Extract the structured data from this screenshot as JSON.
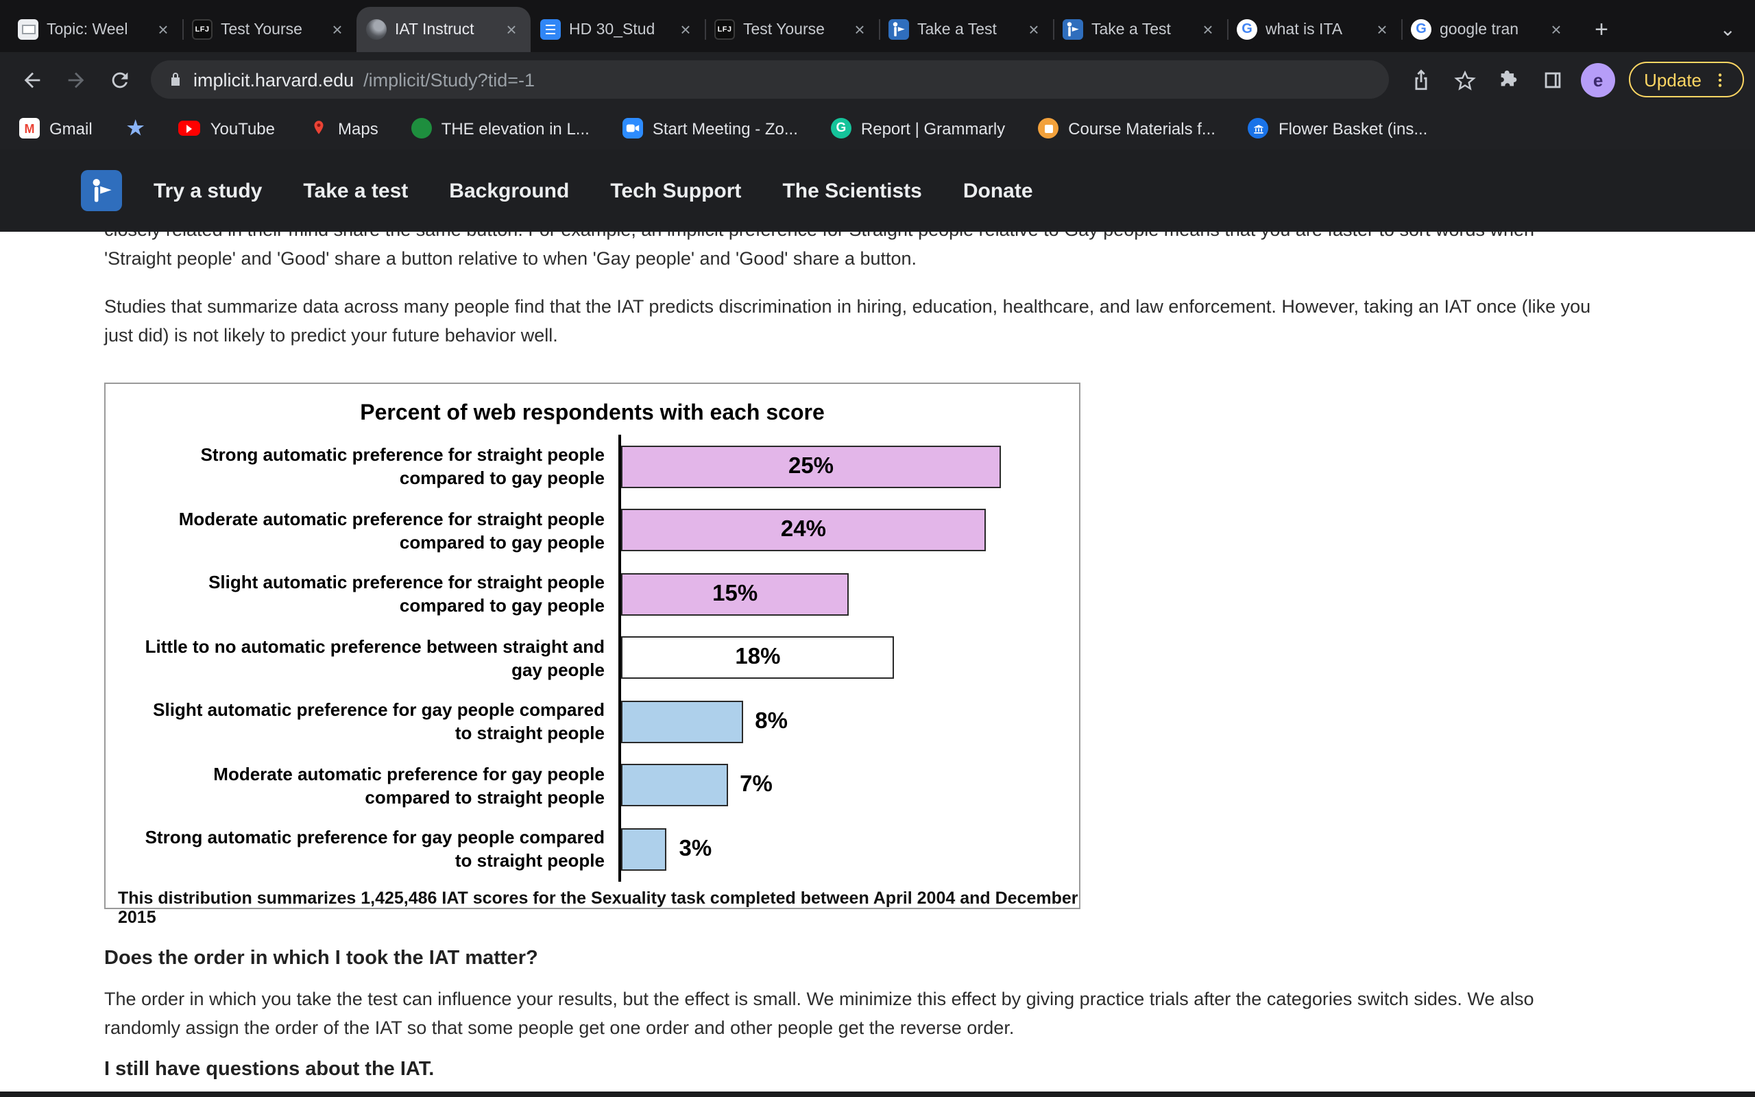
{
  "theme": {
    "update_button_color": "#fdd663",
    "avatar_color": "#b69df8",
    "nav_background": "#1e1f22",
    "brand_blue": "#2f6ebd"
  },
  "icons": {
    "close": "×",
    "plus": "+",
    "chevron_down": "⌄",
    "lfj_text": "LFJ",
    "google_letter": "G",
    "gmail_letter": "M",
    "grammarly_letter": "G",
    "star": "★"
  },
  "browser": {
    "tabs": [
      {
        "title": "Topic: Weel",
        "icon": "slides-icon"
      },
      {
        "title": "Test Yourse",
        "icon": "lfj-icon"
      },
      {
        "title": "IAT Instruct",
        "icon": "implicit-favicon",
        "active": true
      },
      {
        "title": "HD 30_Stud",
        "icon": "docs-icon"
      },
      {
        "title": "Test Yourse",
        "icon": "lfj-icon"
      },
      {
        "title": "Take a Test",
        "icon": "implicit-logo-icon"
      },
      {
        "title": "Take a Test",
        "icon": "implicit-logo-icon"
      },
      {
        "title": "what is ITA",
        "icon": "google-icon"
      },
      {
        "title": "google tran",
        "icon": "google-icon"
      }
    ],
    "toolbar": {
      "url_domain": "implicit.harvard.edu",
      "url_path": "/implicit/Study?tid=-1",
      "update_label": "Update",
      "avatar_letter": "e"
    },
    "bookmarks": [
      {
        "label": "Gmail",
        "icon": "gmail-icon"
      },
      {
        "label": "",
        "icon": "star-icon"
      },
      {
        "label": "YouTube",
        "icon": "youtube-icon"
      },
      {
        "label": "Maps",
        "icon": "maps-icon"
      },
      {
        "label": "THE elevation in L...",
        "icon": "the-icon"
      },
      {
        "label": "Start Meeting - Zo...",
        "icon": "zoom-icon"
      },
      {
        "label": "Report | Grammarly",
        "icon": "grammarly-icon"
      },
      {
        "label": "Course Materials f...",
        "icon": "course-icon"
      },
      {
        "label": "Flower Basket (ins...",
        "icon": "bank-icon"
      }
    ]
  },
  "site_nav": {
    "links": [
      "Try a study",
      "Take a test",
      "Background",
      "Tech Support",
      "The Scientists",
      "Donate"
    ]
  },
  "content": {
    "clipped_line": "closely related in their mind share the same button. For example, an implicit preference for Straight people relative to Gay people means that you are faster to sort words when",
    "line2": "'Straight people' and 'Good' share a button relative to when 'Gay people' and 'Good' share a button.",
    "para1_line1": "Studies that summarize data across many people find that the IAT predicts discrimination in hiring, education, healthcare, and law enforcement. However, taking an IAT once (like you",
    "para1_line2": "just did) is not likely to predict your future behavior well.",
    "heading1": "Does the order in which I took the IAT matter?",
    "para2_line1": "The order in which you take the test can influence your results, but the effect is small. We minimize this effect by giving practice trials after the categories switch sides. We also",
    "para2_line2": "randomly assign the order of the IAT so that some people get one order and other people get the reverse order.",
    "heading2": "I still have questions about the IAT."
  },
  "chart_data": {
    "type": "bar",
    "orientation": "horizontal",
    "title": "Percent of web respondents with each score",
    "categories": [
      "Strong automatic preference for straight people\ncompared to gay people",
      "Moderate automatic preference for straight people\ncompared to gay people",
      "Slight automatic preference for straight people\ncompared to gay people",
      "Little to no automatic preference between straight and\ngay people",
      "Slight automatic preference for gay people compared\nto straight people",
      "Moderate automatic preference for gay people\ncompared to straight people",
      "Strong automatic preference for gay people compared\nto straight people"
    ],
    "values": [
      25,
      24,
      15,
      18,
      8,
      7,
      3
    ],
    "value_labels": [
      "25%",
      "24%",
      "15%",
      "18%",
      "8%",
      "7%",
      "3%"
    ],
    "bar_colors": [
      "#e3b6e9",
      "#e3b6e9",
      "#e3b6e9",
      "#ffffff",
      "#aed0eb",
      "#aed0eb",
      "#aed0eb"
    ],
    "value_label_position": [
      "inside",
      "inside",
      "inside",
      "inside",
      "outside",
      "outside",
      "outside"
    ],
    "xlim": [
      0,
      25
    ],
    "grid": false,
    "legend": false,
    "caption": "This distribution summarizes 1,425,486 IAT scores for the Sexuality task completed between April 2004 and December 2015"
  }
}
